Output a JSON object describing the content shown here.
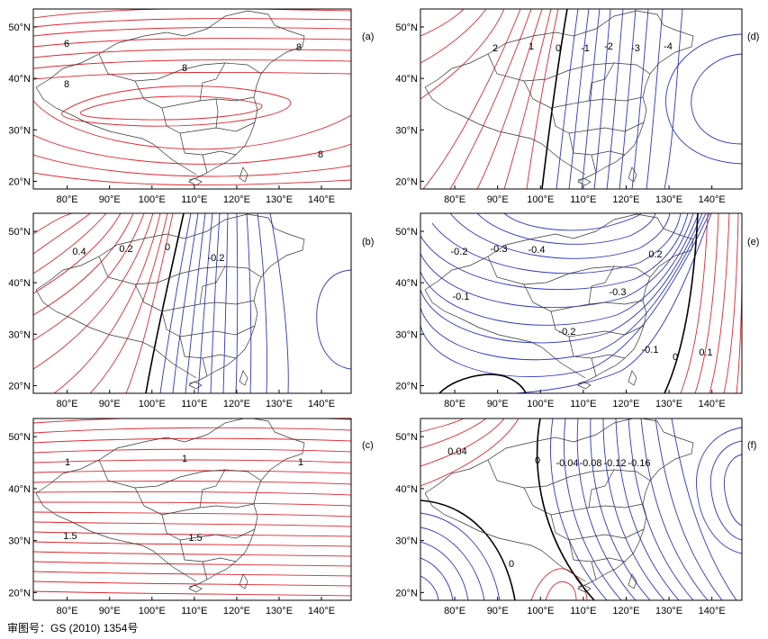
{
  "colors": {
    "positive": "#e0262c",
    "negative": "#2b36c4",
    "zero": "#000000",
    "border": "#333333"
  },
  "footer": "审图号：GS (2010) 1354号",
  "panels": [
    {
      "id": "a",
      "label": "(a)",
      "lon_ticks": [
        "80°E",
        "90°E",
        "100°E",
        "110°E",
        "120°E",
        "130°E",
        "140°E"
      ],
      "lat_ticks": [
        "20°N",
        "30°N",
        "40°N",
        "50°N"
      ],
      "contour_labels": [
        "6",
        "8",
        "8",
        "8",
        "8"
      ]
    },
    {
      "id": "b",
      "label": "(b)",
      "lon_ticks": [
        "80°E",
        "90°E",
        "100°E",
        "110°E",
        "120°E",
        "130°E",
        "140°E"
      ],
      "lat_ticks": [
        "20°N",
        "30°N",
        "40°N",
        "50°N"
      ],
      "contour_labels": [
        "0.4",
        "0.2",
        "0",
        "-0.2"
      ]
    },
    {
      "id": "c",
      "label": "(c)",
      "lon_ticks": [
        "80°E",
        "90°E",
        "100°E",
        "110°E",
        "120°E",
        "130°E",
        "140°E"
      ],
      "lat_ticks": [
        "20°N",
        "30°N",
        "40°N",
        "50°N"
      ],
      "contour_labels": [
        "1",
        "1",
        "1",
        "1.5",
        "1.5"
      ]
    },
    {
      "id": "d",
      "label": "(d)",
      "lon_ticks": [
        "80°E",
        "90°E",
        "100°E",
        "110°E",
        "120°E",
        "130°E",
        "140°E"
      ],
      "lat_ticks": [
        "20°N",
        "30°N",
        "40°N",
        "50°N"
      ],
      "contour_labels": [
        "2",
        "1",
        "0",
        "-1",
        "-2",
        "-3",
        "-4"
      ]
    },
    {
      "id": "e",
      "label": "(e)",
      "lon_ticks": [
        "80°E",
        "90°E",
        "100°E",
        "110°E",
        "120°E",
        "130°E",
        "140°E"
      ],
      "lat_ticks": [
        "20°N",
        "30°N",
        "40°N",
        "50°N"
      ],
      "contour_labels": [
        "-0.2",
        "-0.3",
        "-0.4",
        "-0.1",
        "-0.3",
        "-0.2",
        "-0.1",
        "0",
        "0.1",
        "0.2"
      ]
    },
    {
      "id": "f",
      "label": "(f)",
      "lon_ticks": [
        "80°E",
        "90°E",
        "100°E",
        "110°E",
        "120°E",
        "130°E",
        "140°E"
      ],
      "lat_ticks": [
        "20°N",
        "30°N",
        "40°N",
        "50°N"
      ],
      "contour_labels": [
        "0.04",
        "0",
        "-0.04",
        "-0.08",
        "-0.12",
        "-0.16",
        "0"
      ]
    }
  ]
}
